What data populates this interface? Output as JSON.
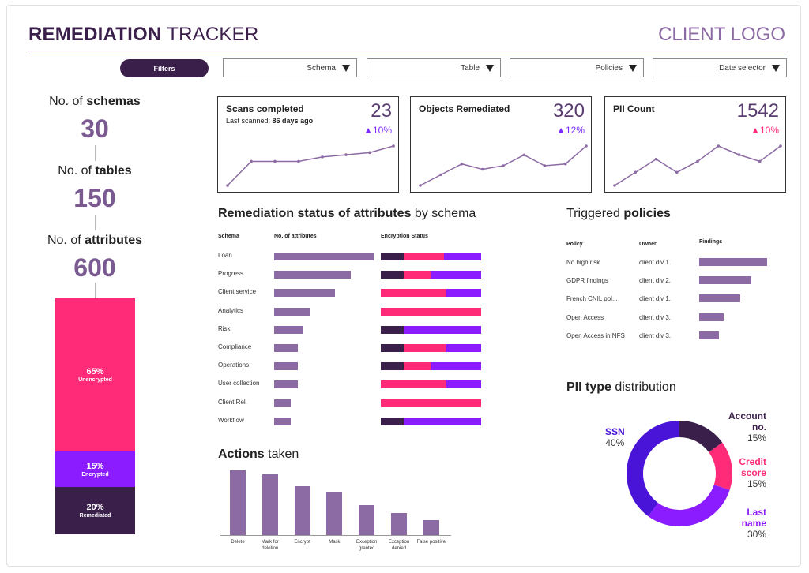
{
  "header": {
    "title_part1": "REMEDIATION",
    "title_part2": "TRACKER",
    "logo": "CLIENT LOGO"
  },
  "filters": {
    "button_label": "Filters",
    "dropdowns": [
      {
        "label": "Schema"
      },
      {
        "label": "Table"
      },
      {
        "label": "Policies"
      },
      {
        "label": "Date selector"
      }
    ]
  },
  "summary": {
    "schemas_prefix": "No. of ",
    "schemas_bold": "schemas",
    "schemas_value": "30",
    "tables_prefix": "No. of ",
    "tables_bold": "tables",
    "tables_value": "150",
    "attributes_prefix": "No. of ",
    "attributes_bold": "attributes",
    "attributes_value": "600",
    "stack": [
      {
        "pct": "65%",
        "name": "Unencrypted",
        "value": 65,
        "color": "#ff2a78"
      },
      {
        "pct": "15%",
        "name": "Encrypted",
        "value": 15,
        "color": "#8a1cff"
      },
      {
        "pct": "20%",
        "name": "Remediated",
        "value": 20,
        "color": "#3a1f4a"
      }
    ]
  },
  "kpis": [
    {
      "title": "Scans completed",
      "sub_prefix": "Last scanned: ",
      "sub_bold": "86 days ago",
      "value": "23",
      "delta": "▲10%",
      "delta_color": "#7a2cff",
      "trend": [
        5,
        16,
        16,
        16,
        18,
        19,
        20,
        23
      ]
    },
    {
      "title": "Objects Remediated",
      "sub_prefix": "",
      "sub_bold": "",
      "value": "320",
      "delta": "▲12%",
      "delta_color": "#7a2cff",
      "trend": [
        3,
        9,
        15,
        12,
        14,
        20,
        14,
        15,
        25
      ]
    },
    {
      "title": "PII Count",
      "sub_prefix": "",
      "sub_bold": "",
      "value": "1542",
      "delta": "▲10%",
      "delta_color": "#ff2a78",
      "trend": [
        3,
        9,
        15,
        9,
        14,
        21,
        17,
        14,
        21
      ]
    }
  ],
  "remediation": {
    "title_bold": "Remediation status of attributes",
    "title_rest": " by schema",
    "col_schema": "Schema",
    "col_attrs": "No. of attributes",
    "col_enc": "Encryption Status",
    "max_attrs": 100,
    "rows": [
      {
        "schema": "Loan",
        "attrs": 100,
        "enc": [
          23,
          40,
          37
        ]
      },
      {
        "schema": "Progress",
        "attrs": 77,
        "enc": [
          23,
          27,
          50
        ]
      },
      {
        "schema": "Client service",
        "attrs": 61,
        "enc": [
          0,
          65,
          35
        ]
      },
      {
        "schema": "Analytics",
        "attrs": 36,
        "enc": [
          0,
          100,
          0
        ]
      },
      {
        "schema": "Risk",
        "attrs": 29,
        "enc": [
          23,
          0,
          77
        ]
      },
      {
        "schema": "Compliance",
        "attrs": 24,
        "enc": [
          23,
          42,
          35
        ]
      },
      {
        "schema": "Operations",
        "attrs": 24,
        "enc": [
          23,
          27,
          50
        ]
      },
      {
        "schema": "User collection",
        "attrs": 24,
        "enc": [
          0,
          65,
          35
        ]
      },
      {
        "schema": "Client Rel.",
        "attrs": 17,
        "enc": [
          0,
          100,
          0
        ]
      },
      {
        "schema": "Workflow",
        "attrs": 17,
        "enc": [
          23,
          0,
          77
        ]
      }
    ],
    "enc_colors": [
      "#3a1f4a",
      "#ff2a78",
      "#8a1cff"
    ]
  },
  "policies": {
    "title_prefix": "Triggered ",
    "title_bold": "policies",
    "col_policy": "Policy",
    "col_owner": "Owner",
    "col_findings": "Findings",
    "max_findings": 100,
    "rows": [
      {
        "policy": "No high risk",
        "owner": "client div 1.",
        "findings": 100
      },
      {
        "policy": "GDPR findings",
        "owner": "client div 2.",
        "findings": 77
      },
      {
        "policy": "French CNIL pol...",
        "owner": "client div 1.",
        "findings": 61
      },
      {
        "policy": "Open Access",
        "owner": "client div 3.",
        "findings": 36
      },
      {
        "policy": "Open Access in NFS",
        "owner": "client div 3.",
        "findings": 29
      }
    ]
  },
  "actions": {
    "title_bold": "Actions",
    "title_rest": " taken",
    "max": 100,
    "items": [
      {
        "label": "Delete",
        "value": 100
      },
      {
        "label": "Mark for deletion",
        "value": 94
      },
      {
        "label": "Encrypt",
        "value": 75
      },
      {
        "label": "Mask",
        "value": 66
      },
      {
        "label": "Exception granted",
        "value": 46
      },
      {
        "label": "Exception denied",
        "value": 34
      },
      {
        "label": "False positive",
        "value": 23
      }
    ]
  },
  "pii": {
    "title_bold": "PII type",
    "title_rest": " distribution",
    "slices": [
      {
        "name": "Account no.",
        "pct": "15%",
        "value": 15,
        "color": "#3a1f4a"
      },
      {
        "name": "Credit score",
        "pct": "15%",
        "value": 15,
        "color": "#ff2a78"
      },
      {
        "name": "Last name",
        "pct": "30%",
        "value": 30,
        "color": "#8a1cff"
      },
      {
        "name": "SSN",
        "pct": "40%",
        "value": 40,
        "color": "#4a14d8"
      }
    ]
  }
}
